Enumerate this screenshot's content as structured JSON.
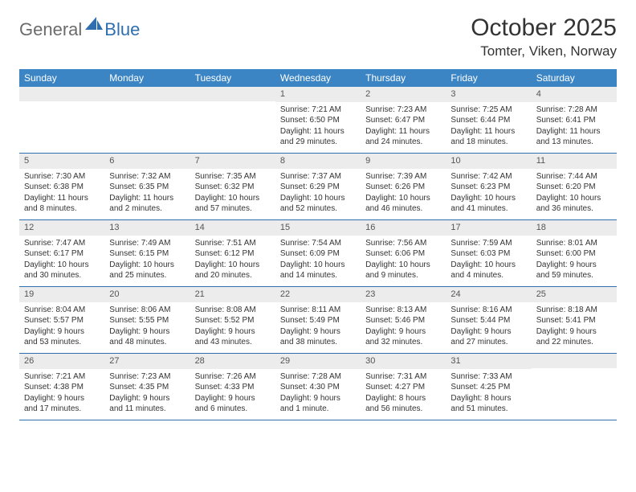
{
  "brand": {
    "part1": "General",
    "part2": "Blue"
  },
  "title": "October 2025",
  "location": "Tomter, Viken, Norway",
  "colors": {
    "header_bar": "#3b85c5",
    "row_border": "#2f6fb0",
    "daynum_bg": "#ececec",
    "text": "#333333",
    "logo_gray": "#6b6b6b",
    "logo_blue": "#2f6fb0",
    "page_bg": "#ffffff"
  },
  "day_names": [
    "Sunday",
    "Monday",
    "Tuesday",
    "Wednesday",
    "Thursday",
    "Friday",
    "Saturday"
  ],
  "weeks": [
    [
      {
        "n": "",
        "lines": []
      },
      {
        "n": "",
        "lines": []
      },
      {
        "n": "",
        "lines": []
      },
      {
        "n": "1",
        "lines": [
          "Sunrise: 7:21 AM",
          "Sunset: 6:50 PM",
          "Daylight: 11 hours and 29 minutes."
        ]
      },
      {
        "n": "2",
        "lines": [
          "Sunrise: 7:23 AM",
          "Sunset: 6:47 PM",
          "Daylight: 11 hours and 24 minutes."
        ]
      },
      {
        "n": "3",
        "lines": [
          "Sunrise: 7:25 AM",
          "Sunset: 6:44 PM",
          "Daylight: 11 hours and 18 minutes."
        ]
      },
      {
        "n": "4",
        "lines": [
          "Sunrise: 7:28 AM",
          "Sunset: 6:41 PM",
          "Daylight: 11 hours and 13 minutes."
        ]
      }
    ],
    [
      {
        "n": "5",
        "lines": [
          "Sunrise: 7:30 AM",
          "Sunset: 6:38 PM",
          "Daylight: 11 hours and 8 minutes."
        ]
      },
      {
        "n": "6",
        "lines": [
          "Sunrise: 7:32 AM",
          "Sunset: 6:35 PM",
          "Daylight: 11 hours and 2 minutes."
        ]
      },
      {
        "n": "7",
        "lines": [
          "Sunrise: 7:35 AM",
          "Sunset: 6:32 PM",
          "Daylight: 10 hours and 57 minutes."
        ]
      },
      {
        "n": "8",
        "lines": [
          "Sunrise: 7:37 AM",
          "Sunset: 6:29 PM",
          "Daylight: 10 hours and 52 minutes."
        ]
      },
      {
        "n": "9",
        "lines": [
          "Sunrise: 7:39 AM",
          "Sunset: 6:26 PM",
          "Daylight: 10 hours and 46 minutes."
        ]
      },
      {
        "n": "10",
        "lines": [
          "Sunrise: 7:42 AM",
          "Sunset: 6:23 PM",
          "Daylight: 10 hours and 41 minutes."
        ]
      },
      {
        "n": "11",
        "lines": [
          "Sunrise: 7:44 AM",
          "Sunset: 6:20 PM",
          "Daylight: 10 hours and 36 minutes."
        ]
      }
    ],
    [
      {
        "n": "12",
        "lines": [
          "Sunrise: 7:47 AM",
          "Sunset: 6:17 PM",
          "Daylight: 10 hours and 30 minutes."
        ]
      },
      {
        "n": "13",
        "lines": [
          "Sunrise: 7:49 AM",
          "Sunset: 6:15 PM",
          "Daylight: 10 hours and 25 minutes."
        ]
      },
      {
        "n": "14",
        "lines": [
          "Sunrise: 7:51 AM",
          "Sunset: 6:12 PM",
          "Daylight: 10 hours and 20 minutes."
        ]
      },
      {
        "n": "15",
        "lines": [
          "Sunrise: 7:54 AM",
          "Sunset: 6:09 PM",
          "Daylight: 10 hours and 14 minutes."
        ]
      },
      {
        "n": "16",
        "lines": [
          "Sunrise: 7:56 AM",
          "Sunset: 6:06 PM",
          "Daylight: 10 hours and 9 minutes."
        ]
      },
      {
        "n": "17",
        "lines": [
          "Sunrise: 7:59 AM",
          "Sunset: 6:03 PM",
          "Daylight: 10 hours and 4 minutes."
        ]
      },
      {
        "n": "18",
        "lines": [
          "Sunrise: 8:01 AM",
          "Sunset: 6:00 PM",
          "Daylight: 9 hours and 59 minutes."
        ]
      }
    ],
    [
      {
        "n": "19",
        "lines": [
          "Sunrise: 8:04 AM",
          "Sunset: 5:57 PM",
          "Daylight: 9 hours and 53 minutes."
        ]
      },
      {
        "n": "20",
        "lines": [
          "Sunrise: 8:06 AM",
          "Sunset: 5:55 PM",
          "Daylight: 9 hours and 48 minutes."
        ]
      },
      {
        "n": "21",
        "lines": [
          "Sunrise: 8:08 AM",
          "Sunset: 5:52 PM",
          "Daylight: 9 hours and 43 minutes."
        ]
      },
      {
        "n": "22",
        "lines": [
          "Sunrise: 8:11 AM",
          "Sunset: 5:49 PM",
          "Daylight: 9 hours and 38 minutes."
        ]
      },
      {
        "n": "23",
        "lines": [
          "Sunrise: 8:13 AM",
          "Sunset: 5:46 PM",
          "Daylight: 9 hours and 32 minutes."
        ]
      },
      {
        "n": "24",
        "lines": [
          "Sunrise: 8:16 AM",
          "Sunset: 5:44 PM",
          "Daylight: 9 hours and 27 minutes."
        ]
      },
      {
        "n": "25",
        "lines": [
          "Sunrise: 8:18 AM",
          "Sunset: 5:41 PM",
          "Daylight: 9 hours and 22 minutes."
        ]
      }
    ],
    [
      {
        "n": "26",
        "lines": [
          "Sunrise: 7:21 AM",
          "Sunset: 4:38 PM",
          "Daylight: 9 hours and 17 minutes."
        ]
      },
      {
        "n": "27",
        "lines": [
          "Sunrise: 7:23 AM",
          "Sunset: 4:35 PM",
          "Daylight: 9 hours and 11 minutes."
        ]
      },
      {
        "n": "28",
        "lines": [
          "Sunrise: 7:26 AM",
          "Sunset: 4:33 PM",
          "Daylight: 9 hours and 6 minutes."
        ]
      },
      {
        "n": "29",
        "lines": [
          "Sunrise: 7:28 AM",
          "Sunset: 4:30 PM",
          "Daylight: 9 hours and 1 minute."
        ]
      },
      {
        "n": "30",
        "lines": [
          "Sunrise: 7:31 AM",
          "Sunset: 4:27 PM",
          "Daylight: 8 hours and 56 minutes."
        ]
      },
      {
        "n": "31",
        "lines": [
          "Sunrise: 7:33 AM",
          "Sunset: 4:25 PM",
          "Daylight: 8 hours and 51 minutes."
        ]
      },
      {
        "n": "",
        "lines": []
      }
    ]
  ]
}
